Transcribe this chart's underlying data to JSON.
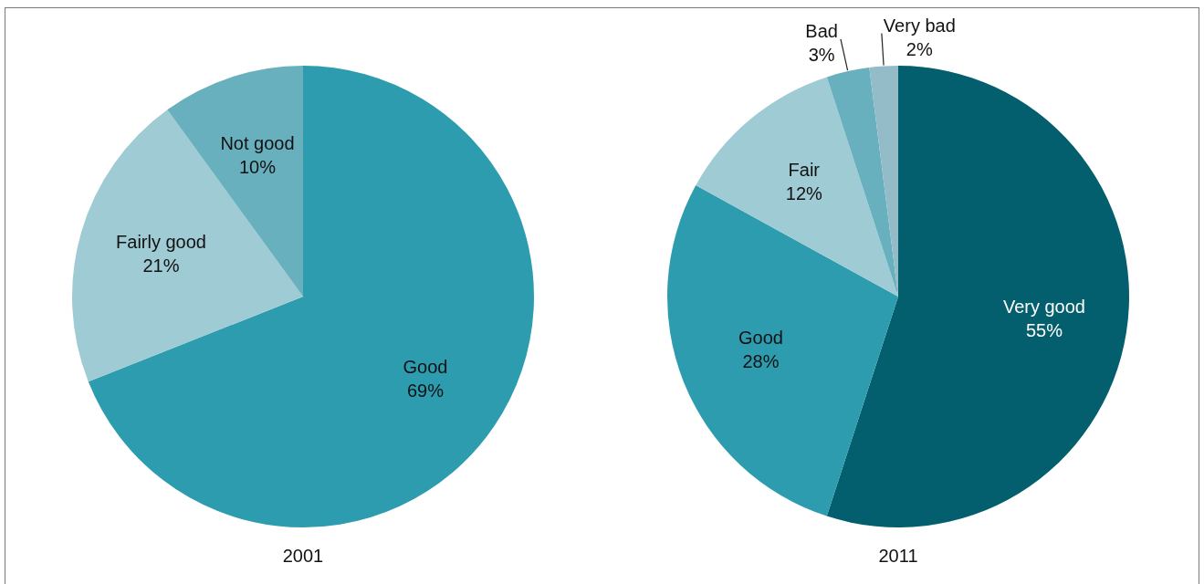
{
  "chart_data": [
    {
      "type": "pie",
      "title": "2001",
      "categories": [
        "Good",
        "Fairly good",
        "Not good"
      ],
      "values": [
        69,
        21,
        10
      ],
      "colors": [
        "#2e9caf",
        "#9fcbd4",
        "#68b0be"
      ],
      "value_labels": [
        "69%",
        "21%",
        "10%"
      ]
    },
    {
      "type": "pie",
      "title": "2011",
      "categories": [
        "Very good",
        "Good",
        "Fair",
        "Bad",
        "Very bad"
      ],
      "values": [
        55,
        28,
        12,
        3,
        2
      ],
      "colors": [
        "#035f6d",
        "#2e9caf",
        "#9fcbd4",
        "#68b0be",
        "#93bcc8"
      ],
      "value_labels": [
        "55%",
        "28%",
        "12%",
        "3%",
        "2%"
      ]
    }
  ]
}
